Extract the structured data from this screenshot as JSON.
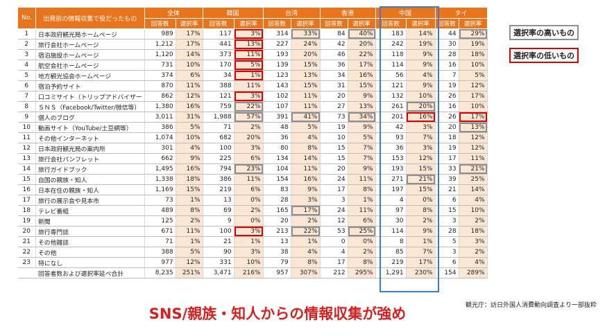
{
  "table": {
    "header_no": "No.",
    "header_item": "出発前の情報収集で役だったもの",
    "groups": [
      "全体",
      "韓国",
      "台湾",
      "香港",
      "中国",
      "タイ"
    ],
    "sub_count": "回答数",
    "sub_rate": "選択率",
    "rows": [
      {
        "no": "1",
        "name": "日本政府観光局ホームページ",
        "v": [
          [
            "989",
            "17%"
          ],
          [
            "117",
            "3%"
          ],
          [
            "314",
            "33%"
          ],
          [
            "84",
            "40%"
          ],
          [
            "183",
            "14%"
          ],
          [
            "44",
            "29%"
          ]
        ],
        "mark": [
          "",
          "lo",
          "hi",
          "hi",
          "",
          "hi"
        ]
      },
      {
        "no": "2",
        "name": "旅行会社ホームページ",
        "v": [
          [
            "1,212",
            "17%"
          ],
          [
            "441",
            "13%"
          ],
          [
            "227",
            "24%"
          ],
          [
            "42",
            "20%"
          ],
          [
            "242",
            "19%"
          ],
          [
            "30",
            "19%"
          ]
        ],
        "mark": [
          "",
          "lo",
          "",
          "",
          "",
          ""
        ]
      },
      {
        "no": "3",
        "name": "宿泊施設ホームページ",
        "v": [
          [
            "1,120",
            "14%"
          ],
          [
            "373",
            "11%"
          ],
          [
            "193",
            "20%"
          ],
          [
            "46",
            "22%"
          ],
          [
            "118",
            "9%"
          ],
          [
            "28",
            "18%"
          ]
        ],
        "mark": [
          "",
          "lo",
          "",
          "",
          "",
          ""
        ]
      },
      {
        "no": "4",
        "name": "航空会社ホームページ",
        "v": [
          [
            "731",
            "10%"
          ],
          [
            "170",
            "5%"
          ],
          [
            "139",
            "15%"
          ],
          [
            "36",
            "17%"
          ],
          [
            "114",
            "9%"
          ],
          [
            "16",
            "10%"
          ]
        ],
        "mark": [
          "",
          "lo",
          "",
          "",
          "",
          ""
        ]
      },
      {
        "no": "5",
        "name": "地方観光協会ホームページ",
        "v": [
          [
            "374",
            "6%"
          ],
          [
            "34",
            "1%"
          ],
          [
            "123",
            "13%"
          ],
          [
            "34",
            "16%"
          ],
          [
            "56",
            "4%"
          ],
          [
            "7",
            "5%"
          ]
        ],
        "mark": [
          "",
          "lo",
          "",
          "",
          "",
          ""
        ]
      },
      {
        "no": "6",
        "name": "宿泊予約サイト",
        "v": [
          [
            "870",
            "11%"
          ],
          [
            "388",
            "11%"
          ],
          [
            "143",
            "15%"
          ],
          [
            "31",
            "15%"
          ],
          [
            "121",
            "9%"
          ],
          [
            "19",
            "12%"
          ]
        ],
        "mark": [
          "",
          "",
          "",
          "",
          "",
          ""
        ]
      },
      {
        "no": "7",
        "name": "口コミサイト（トリップアドバイザー",
        "v": [
          [
            "862",
            "12%"
          ],
          [
            "121",
            "3%"
          ],
          [
            "102",
            "11%"
          ],
          [
            "20",
            "9%"
          ],
          [
            "132",
            "10%"
          ],
          [
            "26",
            "17%"
          ]
        ],
        "mark": [
          "",
          "lo",
          "",
          "",
          "",
          ""
        ]
      },
      {
        "no": "8",
        "name": "ＳＮＳ（Facebook/Twitter/微信等）",
        "v": [
          [
            "1,380",
            "16%"
          ],
          [
            "759",
            "22%"
          ],
          [
            "107",
            "11%"
          ],
          [
            "27",
            "13%"
          ],
          [
            "261",
            "20%"
          ],
          [
            "16",
            "10%"
          ]
        ],
        "mark": [
          "",
          "hi",
          "",
          "",
          "hi",
          ""
        ]
      },
      {
        "no": "9",
        "name": "個人のブログ",
        "v": [
          [
            "3,011",
            "31%"
          ],
          [
            "1,988",
            "57%"
          ],
          [
            "391",
            "41%"
          ],
          [
            "73",
            "34%"
          ],
          [
            "201",
            "16%"
          ],
          [
            "26",
            "17%"
          ]
        ],
        "mark": [
          "",
          "hi",
          "hi",
          "hi",
          "lo",
          "lo"
        ]
      },
      {
        "no": "10",
        "name": "動画サイト（YouTube/土豆網等）",
        "v": [
          [
            "386",
            "5%"
          ],
          [
            "71",
            "2%"
          ],
          [
            "48",
            "5%"
          ],
          [
            "19",
            "9%"
          ],
          [
            "42",
            "3%"
          ],
          [
            "20",
            "13%"
          ]
        ],
        "mark": [
          "",
          "",
          "",
          "",
          "",
          "hi"
        ]
      },
      {
        "no": "11",
        "name": "その他インターネット",
        "v": [
          [
            "1,074",
            "10%"
          ],
          [
            "682",
            "20%"
          ],
          [
            "36",
            "4%"
          ],
          [
            "10",
            "5%"
          ],
          [
            "93",
            "7%"
          ],
          [
            "18",
            "12%"
          ]
        ],
        "mark": [
          "",
          "",
          "",
          "",
          "",
          ""
        ]
      },
      {
        "no": "12",
        "name": "日本政府観光局の案内所",
        "v": [
          [
            "301",
            "4%"
          ],
          [
            "100",
            "3%"
          ],
          [
            "80",
            "8%"
          ],
          [
            "15",
            "7%"
          ],
          [
            "36",
            "3%"
          ],
          [
            "19",
            "12%"
          ]
        ],
        "mark": [
          "",
          "",
          "",
          "",
          "",
          ""
        ]
      },
      {
        "no": "13",
        "name": "旅行会社パンフレット",
        "v": [
          [
            "662",
            "9%"
          ],
          [
            "225",
            "6%"
          ],
          [
            "134",
            "14%"
          ],
          [
            "15",
            "7%"
          ],
          [
            "153",
            "12%"
          ],
          [
            "17",
            "11%"
          ]
        ],
        "mark": [
          "",
          "",
          "",
          "",
          "",
          ""
        ]
      },
      {
        "no": "14",
        "name": "旅行ガイドブック",
        "v": [
          [
            "1,495",
            "16%"
          ],
          [
            "794",
            "23%"
          ],
          [
            "104",
            "11%"
          ],
          [
            "20",
            "9%"
          ],
          [
            "193",
            "15%"
          ],
          [
            "33",
            "21%"
          ]
        ],
        "mark": [
          "",
          "hi",
          "",
          "",
          "",
          "hi"
        ]
      },
      {
        "no": "15",
        "name": "自国の親族・知人",
        "v": [
          [
            "1,338",
            "18%"
          ],
          [
            "386",
            "11%"
          ],
          [
            "154",
            "16%"
          ],
          [
            "24",
            "11%"
          ],
          [
            "271",
            "21%"
          ],
          [
            "39",
            "25%"
          ]
        ],
        "mark": [
          "",
          "",
          "",
          "",
          "hi",
          ""
        ]
      },
      {
        "no": "16",
        "name": "日本在住の親族・知人",
        "v": [
          [
            "1,169",
            "15%"
          ],
          [
            "219",
            "6%"
          ],
          [
            "83",
            "9%"
          ],
          [
            "17",
            "8%"
          ],
          [
            "197",
            "15%"
          ],
          [
            "21",
            "14%"
          ]
        ],
        "mark": [
          "",
          "",
          "",
          "",
          "",
          ""
        ]
      },
      {
        "no": "17",
        "name": "旅行の展示会や見本市",
        "v": [
          [
            "73",
            "1%"
          ],
          [
            "13",
            "0%"
          ],
          [
            "28",
            "3%"
          ],
          [
            "3",
            "1%"
          ],
          [
            "4",
            "0%"
          ],
          [
            "6",
            "4%"
          ]
        ],
        "mark": [
          "",
          "",
          "",
          "",
          "",
          ""
        ]
      },
      {
        "no": "18",
        "name": "テレビ番組",
        "v": [
          [
            "489",
            "8%"
          ],
          [
            "69",
            "2%"
          ],
          [
            "165",
            "17%"
          ],
          [
            "24",
            "11%"
          ],
          [
            "97",
            "8%"
          ],
          [
            "15",
            "10%"
          ]
        ],
        "mark": [
          "",
          "",
          "hi",
          "",
          "",
          ""
        ]
      },
      {
        "no": "19",
        "name": "新聞",
        "v": [
          [
            "125",
            "2%"
          ],
          [
            "9",
            "0%"
          ],
          [
            "20",
            "2%"
          ],
          [
            "12",
            "6%"
          ],
          [
            "30",
            "2%"
          ],
          [
            "3",
            "2%"
          ]
        ],
        "mark": [
          "",
          "",
          "",
          "",
          "",
          ""
        ]
      },
      {
        "no": "20",
        "name": "旅行専門誌",
        "v": [
          [
            "671",
            "11%"
          ],
          [
            "100",
            "3%"
          ],
          [
            "213",
            "22%"
          ],
          [
            "53",
            "25%"
          ],
          [
            "114",
            "9%"
          ],
          [
            "28",
            "18%"
          ]
        ],
        "mark": [
          "",
          "lo",
          "hi",
          "hi",
          "",
          ""
        ]
      },
      {
        "no": "21",
        "name": "その他雑誌",
        "v": [
          [
            "71",
            "1%"
          ],
          [
            "21",
            "1%"
          ],
          [
            "13",
            "1%"
          ],
          [
            "0",
            "0%"
          ],
          [
            "8",
            "1%"
          ],
          [
            "5",
            "3%"
          ]
        ],
        "mark": [
          "",
          "",
          "",
          "",
          "",
          ""
        ]
      },
      {
        "no": "22",
        "name": "その他",
        "v": [
          [
            "388",
            "5%"
          ],
          [
            "90",
            "3%"
          ],
          [
            "38",
            "4%"
          ],
          [
            "4",
            "2%"
          ],
          [
            "85",
            "7%"
          ],
          [
            "3",
            "2%"
          ]
        ],
        "mark": [
          "",
          "",
          "",
          "",
          "",
          ""
        ]
      },
      {
        "no": "23",
        "name": "特になし",
        "v": [
          [
            "977",
            "12%"
          ],
          [
            "331",
            "10%"
          ],
          [
            "79",
            "8%"
          ],
          [
            "17",
            "8%"
          ],
          [
            "219",
            "17%"
          ],
          [
            "6",
            "4%"
          ]
        ],
        "mark": [
          "",
          "",
          "",
          "",
          "",
          ""
        ]
      }
    ],
    "total": {
      "name": "回答者数および選択率延べ合計",
      "v": [
        [
          "8,235",
          "251%"
        ],
        [
          "3,471",
          "216%"
        ],
        [
          "957",
          "307%"
        ],
        [
          "212",
          "295%"
        ],
        [
          "1,291",
          "230%"
        ],
        [
          "154",
          "289%"
        ]
      ]
    }
  },
  "legend": {
    "high": "選択率の高いもの",
    "low": "選択率の低いもの",
    "high_color": "#8e8e8e",
    "low_color": "#e00000"
  },
  "source": "観光庁：訪日外国人消費動向調査より一部抜粋",
  "headline": "SNS/親族・知人からの情報収集が強め",
  "colors": {
    "header": "#e8741c",
    "rate_bg": "#fbe6d4",
    "china_box": "#3b7bd6",
    "headline": "#d62020"
  }
}
